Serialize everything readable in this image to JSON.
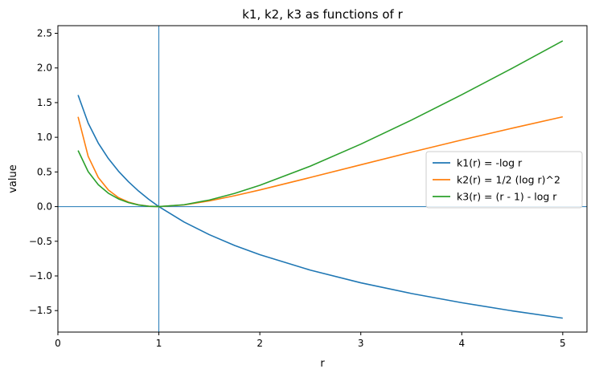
{
  "chart_data": {
    "type": "line",
    "title": "k1, k2, k3 as functions of r",
    "xlabel": "r",
    "ylabel": "value",
    "xlim": [
      -0.0,
      5.24
    ],
    "ylim": [
      -1.81,
      2.61
    ],
    "xticks": [
      0,
      1,
      2,
      3,
      4,
      5
    ],
    "xtick_labels": [
      "0",
      "1",
      "2",
      "3",
      "4",
      "5"
    ],
    "yticks": [
      -1.5,
      -1.0,
      -0.5,
      0.0,
      0.5,
      1.0,
      1.5,
      2.0,
      2.5
    ],
    "ytick_labels": [
      "−1.5",
      "−1.0",
      "−0.5",
      "0.0",
      "0.5",
      "1.0",
      "1.5",
      "2.0",
      "2.5"
    ],
    "reference_lines": {
      "vertical_x": 1,
      "horizontal_y": 0,
      "color": "#1f77b4"
    },
    "grid": false,
    "legend_position": "center-right",
    "series": [
      {
        "name": "k1(r) = -log r",
        "color": "#1f77b4",
        "x": [
          0.2,
          0.3,
          0.4,
          0.5,
          0.6,
          0.7,
          0.8,
          0.9,
          1.0,
          1.25,
          1.5,
          1.75,
          2.0,
          2.5,
          3.0,
          3.5,
          4.0,
          4.5,
          5.0
        ],
        "y": [
          1.609,
          1.204,
          0.916,
          0.693,
          0.511,
          0.357,
          0.223,
          0.105,
          0.0,
          -0.223,
          -0.405,
          -0.56,
          -0.693,
          -0.916,
          -1.099,
          -1.253,
          -1.386,
          -1.504,
          -1.609
        ]
      },
      {
        "name": "k2(r) = 1/2 (log r)^2",
        "color": "#ff7f0e",
        "x": [
          0.2,
          0.3,
          0.4,
          0.5,
          0.6,
          0.7,
          0.8,
          0.9,
          1.0,
          1.25,
          1.5,
          1.75,
          2.0,
          2.5,
          3.0,
          3.5,
          4.0,
          4.5,
          5.0
        ],
        "y": [
          1.295,
          0.725,
          0.42,
          0.24,
          0.13,
          0.064,
          0.025,
          0.006,
          0.0,
          0.025,
          0.082,
          0.157,
          0.24,
          0.42,
          0.603,
          0.785,
          0.961,
          1.131,
          1.295
        ]
      },
      {
        "name": "k3(r) = (r - 1) - log r",
        "color": "#2ca02c",
        "x": [
          0.2,
          0.3,
          0.4,
          0.5,
          0.6,
          0.7,
          0.8,
          0.9,
          1.0,
          1.25,
          1.5,
          1.75,
          2.0,
          2.5,
          3.0,
          3.5,
          4.0,
          4.5,
          5.0
        ],
        "y": [
          0.809,
          0.504,
          0.316,
          0.193,
          0.111,
          0.057,
          0.023,
          0.005,
          0.0,
          0.027,
          0.095,
          0.19,
          0.307,
          0.584,
          0.901,
          1.247,
          1.614,
          1.996,
          2.391
        ]
      }
    ]
  }
}
